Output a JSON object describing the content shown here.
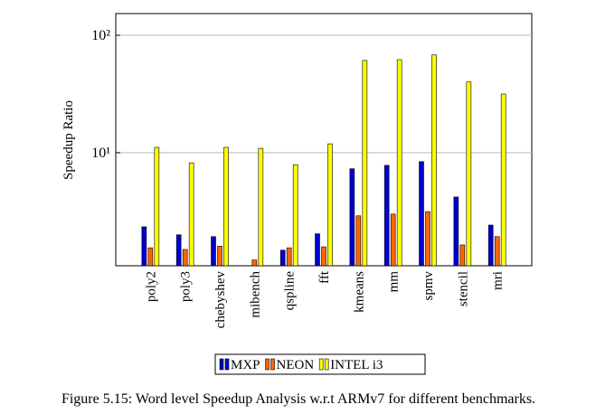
{
  "chart_data": {
    "type": "bar",
    "ylabel": "Speedup Ratio",
    "caption": "Figure 5.15: Word level Speedup Analysis w.r.t ARMv7 for different benchmarks.",
    "categories": [
      "poly2",
      "poly3",
      "chebyshev",
      "mibench",
      "qspline",
      "fft",
      "kmeans",
      "mm",
      "spmv",
      "stencil",
      "mri"
    ],
    "series": [
      {
        "name": "MXP",
        "color": "#0000cc",
        "values": [
          2.34,
          2.0,
          1.93,
          null,
          1.48,
          2.04,
          7.3,
          7.8,
          8.4,
          4.2,
          2.42
        ]
      },
      {
        "name": "NEON",
        "color": "#ff6600",
        "values": [
          1.55,
          1.5,
          1.6,
          1.22,
          1.55,
          1.58,
          2.9,
          3.0,
          3.15,
          1.64,
          1.93
        ]
      },
      {
        "name": "INTEL i3",
        "color": "#ffff00",
        "values": [
          11.1,
          8.2,
          11.1,
          10.9,
          7.9,
          11.9,
          61,
          62,
          68,
          40,
          31.6
        ]
      }
    ],
    "log_scale": true,
    "ylim": [
      1.09,
      153
    ],
    "yticks": [
      {
        "value": 10,
        "label": "10¹"
      },
      {
        "value": 100,
        "label": "10²"
      }
    ],
    "grid": true,
    "legend": "bottom"
  }
}
